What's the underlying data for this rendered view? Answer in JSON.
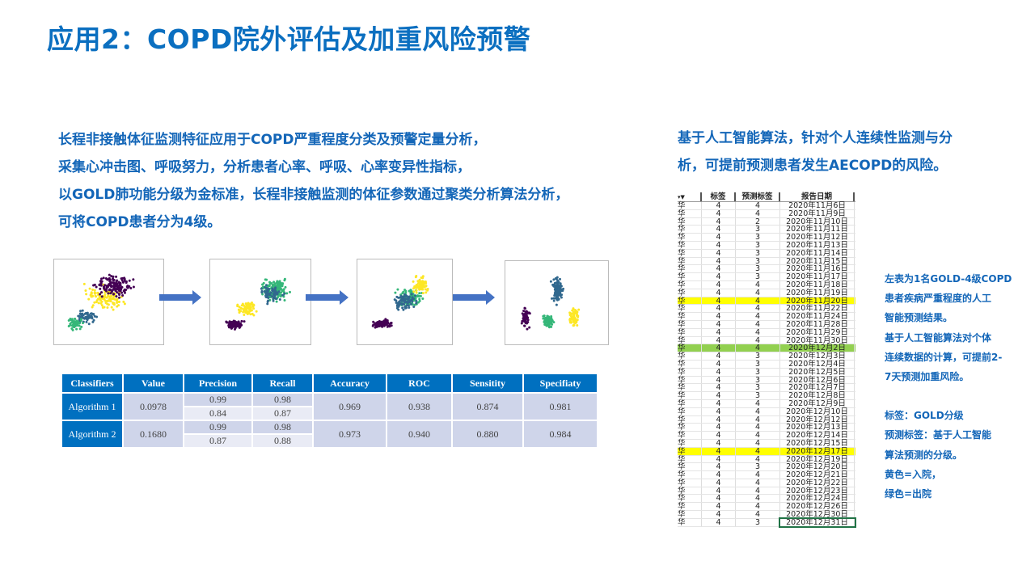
{
  "title": "应用2：COPD院外评估及加重风险预警",
  "left_paragraph": [
    "长程非接触体征监测特征应用于COPD严重程度分类及预警定量分析，",
    "采集心冲击图、呼吸努力，分析患者心率、呼吸、心率变异性指标，",
    "以GOLD肺功能分级为金标准，长程非接触监测的体征参数通过聚类分析算法分析，",
    "可将COPD患者分为4级。"
  ],
  "right_paragraph": [
    "基于人工智能算法，针对个人连续性监测与分",
    "析，可提前预测患者发生AECOPD的风险。"
  ],
  "plot_colors": {
    "purple": "#440154",
    "blue": "#31688e",
    "green": "#35b779",
    "yellow": "#fde725"
  },
  "metrics": {
    "headers": [
      "Classifiers",
      "Value",
      "Precision",
      "Recall",
      "Accuracy",
      "ROC",
      "Sensitity",
      "Specifiaty"
    ],
    "rows": [
      {
        "name": "Algorithm 1",
        "value": "0.0978",
        "precision": [
          "0.99",
          "0.84"
        ],
        "recall": [
          "0.98",
          "0.87"
        ],
        "accuracy": "0.969",
        "roc": "0.938",
        "sensitivity": "0.874",
        "specificity": "0.981"
      },
      {
        "name": "Algorithm 2",
        "value": "0.1680",
        "precision": [
          "0.99",
          "0.87"
        ],
        "recall": [
          "0.98",
          "0.88"
        ],
        "accuracy": "0.973",
        "roc": "0.940",
        "sensitivity": "0.880",
        "specificity": "0.984"
      }
    ]
  },
  "sheet": {
    "headers": [
      "",
      "标签",
      "预测标签",
      "报告日期"
    ],
    "name_char": "华",
    "highlight_colors": {
      "yellow": "#ffff00",
      "green": "#92d050"
    },
    "rows": [
      [
        "4",
        "4",
        "2020年11月6日",
        ""
      ],
      [
        "4",
        "4",
        "2020年11月9日",
        ""
      ],
      [
        "4",
        "2",
        "2020年11月10日",
        ""
      ],
      [
        "4",
        "3",
        "2020年11月11日",
        ""
      ],
      [
        "4",
        "3",
        "2020年11月12日",
        ""
      ],
      [
        "4",
        "3",
        "2020年11月13日",
        ""
      ],
      [
        "4",
        "3",
        "2020年11月14日",
        ""
      ],
      [
        "4",
        "3",
        "2020年11月15日",
        ""
      ],
      [
        "4",
        "3",
        "2020年11月16日",
        ""
      ],
      [
        "4",
        "3",
        "2020年11月17日",
        ""
      ],
      [
        "4",
        "4",
        "2020年11月18日",
        ""
      ],
      [
        "4",
        "4",
        "2020年11月19日",
        ""
      ],
      [
        "4",
        "4",
        "2020年11月20日",
        "yellow"
      ],
      [
        "4",
        "4",
        "2020年11月22日",
        ""
      ],
      [
        "4",
        "4",
        "2020年11月24日",
        ""
      ],
      [
        "4",
        "4",
        "2020年11月28日",
        ""
      ],
      [
        "4",
        "4",
        "2020年11月29日",
        ""
      ],
      [
        "4",
        "4",
        "2020年11月30日",
        ""
      ],
      [
        "4",
        "4",
        "2020年12月2日",
        "green"
      ],
      [
        "4",
        "3",
        "2020年12月3日",
        ""
      ],
      [
        "4",
        "3",
        "2020年12月4日",
        ""
      ],
      [
        "4",
        "3",
        "2020年12月5日",
        ""
      ],
      [
        "4",
        "3",
        "2020年12月6日",
        ""
      ],
      [
        "4",
        "3",
        "2020年12月7日",
        ""
      ],
      [
        "4",
        "3",
        "2020年12月8日",
        ""
      ],
      [
        "4",
        "4",
        "2020年12月9日",
        ""
      ],
      [
        "4",
        "4",
        "2020年12月10日",
        ""
      ],
      [
        "4",
        "4",
        "2020年12月12日",
        ""
      ],
      [
        "4",
        "4",
        "2020年12月13日",
        ""
      ],
      [
        "4",
        "4",
        "2020年12月14日",
        ""
      ],
      [
        "4",
        "4",
        "2020年12月15日",
        ""
      ],
      [
        "4",
        "4",
        "2020年12月17日",
        "yellow"
      ],
      [
        "4",
        "4",
        "2020年12月19日",
        ""
      ],
      [
        "4",
        "3",
        "2020年12月20日",
        ""
      ],
      [
        "4",
        "4",
        "2020年12月21日",
        ""
      ],
      [
        "4",
        "4",
        "2020年12月22日",
        ""
      ],
      [
        "4",
        "4",
        "2020年12月23日",
        ""
      ],
      [
        "4",
        "4",
        "2020年12月24日",
        ""
      ],
      [
        "4",
        "4",
        "2020年12月26日",
        ""
      ],
      [
        "4",
        "4",
        "2020年12月30日",
        ""
      ],
      [
        "4",
        "3",
        "2020年12月31日",
        "selected"
      ]
    ]
  },
  "note": [
    "左表为1名GOLD-4级COPD",
    "患者疾病严重程度的人工",
    "智能预测结果。",
    "基于人工智能算法对个体",
    "连续数据的计算，可提前2-",
    "7天预测加重风险。",
    "",
    "标签：GOLD分级",
    "预测标签：基于人工智能",
    "算法预测的分级。",
    "黄色=入院，",
    "绿色=出院"
  ]
}
